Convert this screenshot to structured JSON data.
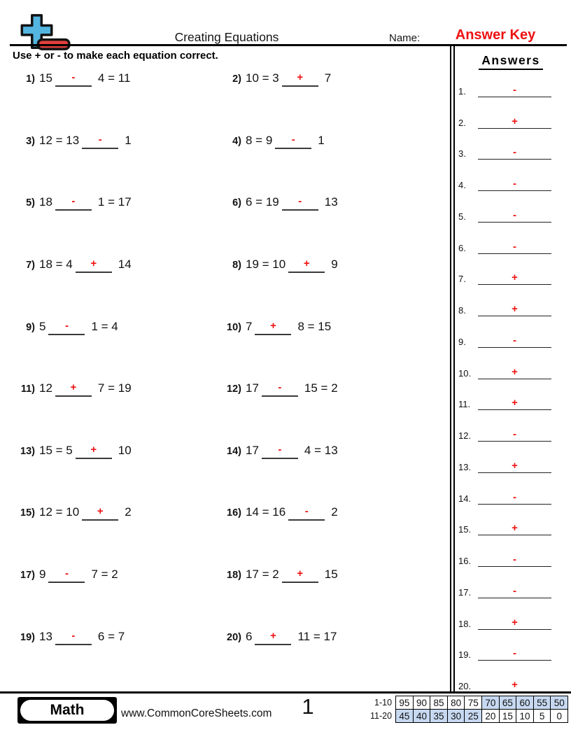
{
  "colors": {
    "accent_red": "#ee1111",
    "logo_blue": "#53b5e0",
    "logo_red": "#e2403d",
    "table_highlight_blue": "#c7d9f1"
  },
  "header": {
    "title": "Creating Equations",
    "name_label": "Name:",
    "name_value": "Answer Key"
  },
  "instruction": "Use + or - to make each equation correct.",
  "answers_panel": {
    "title": "Answers"
  },
  "problems": [
    {
      "num": "1)",
      "before": "15",
      "answer": "-",
      "after": "4 = 11"
    },
    {
      "num": "2)",
      "before": "10 = 3",
      "answer": "+",
      "after": "7"
    },
    {
      "num": "3)",
      "before": "12 = 13",
      "answer": "-",
      "after": "1"
    },
    {
      "num": "4)",
      "before": "8 = 9",
      "answer": "-",
      "after": "1"
    },
    {
      "num": "5)",
      "before": "18",
      "answer": "-",
      "after": "1 = 17"
    },
    {
      "num": "6)",
      "before": "6 = 19",
      "answer": "-",
      "after": "13"
    },
    {
      "num": "7)",
      "before": "18 = 4",
      "answer": "+",
      "after": "14"
    },
    {
      "num": "8)",
      "before": "19 = 10",
      "answer": "+",
      "after": "9"
    },
    {
      "num": "9)",
      "before": "5",
      "answer": "-",
      "after": "1 = 4"
    },
    {
      "num": "10)",
      "before": "7",
      "answer": "+",
      "after": "8 = 15"
    },
    {
      "num": "11)",
      "before": "12",
      "answer": "+",
      "after": "7 = 19"
    },
    {
      "num": "12)",
      "before": "17",
      "answer": "-",
      "after": "15 = 2"
    },
    {
      "num": "13)",
      "before": "15 = 5",
      "answer": "+",
      "after": "10"
    },
    {
      "num": "14)",
      "before": "17",
      "answer": "-",
      "after": "4 = 13"
    },
    {
      "num": "15)",
      "before": "12 = 10",
      "answer": "+",
      "after": "2"
    },
    {
      "num": "16)",
      "before": "14 = 16",
      "answer": "-",
      "after": "2"
    },
    {
      "num": "17)",
      "before": "9",
      "answer": "-",
      "after": "7 = 2"
    },
    {
      "num": "18)",
      "before": "17 = 2",
      "answer": "+",
      "after": "15"
    },
    {
      "num": "19)",
      "before": "13",
      "answer": "-",
      "after": "6 = 7"
    },
    {
      "num": "20)",
      "before": "6",
      "answer": "+",
      "after": "11 = 17"
    }
  ],
  "answers": [
    {
      "num": "1.",
      "symbol": "-"
    },
    {
      "num": "2.",
      "symbol": "+"
    },
    {
      "num": "3.",
      "symbol": "-"
    },
    {
      "num": "4.",
      "symbol": "-"
    },
    {
      "num": "5.",
      "symbol": "-"
    },
    {
      "num": "6.",
      "symbol": "-"
    },
    {
      "num": "7.",
      "symbol": "+"
    },
    {
      "num": "8.",
      "symbol": "+"
    },
    {
      "num": "9.",
      "symbol": "-"
    },
    {
      "num": "10.",
      "symbol": "+"
    },
    {
      "num": "11.",
      "symbol": "+"
    },
    {
      "num": "12.",
      "symbol": "-"
    },
    {
      "num": "13.",
      "symbol": "+"
    },
    {
      "num": "14.",
      "symbol": "-"
    },
    {
      "num": "15.",
      "symbol": "+"
    },
    {
      "num": "16.",
      "symbol": "-"
    },
    {
      "num": "17.",
      "symbol": "-"
    },
    {
      "num": "18.",
      "symbol": "+"
    },
    {
      "num": "19.",
      "symbol": "-"
    },
    {
      "num": "20.",
      "symbol": "+"
    }
  ],
  "footer": {
    "subject_badge": "Math",
    "website": "www.CommonCoreSheets.com",
    "page_number": "1",
    "grading_table": {
      "rows": [
        {
          "label": "1-10",
          "values": [
            "95",
            "90",
            "85",
            "80",
            "75",
            "70",
            "65",
            "60",
            "55",
            "50"
          ],
          "highlighted": [
            false,
            false,
            false,
            false,
            false,
            true,
            true,
            true,
            true,
            true
          ]
        },
        {
          "label": "11-20",
          "values": [
            "45",
            "40",
            "35",
            "30",
            "25",
            "20",
            "15",
            "10",
            "5",
            "0"
          ],
          "highlighted": [
            true,
            true,
            true,
            true,
            true,
            false,
            false,
            false,
            false,
            false
          ]
        }
      ]
    }
  }
}
